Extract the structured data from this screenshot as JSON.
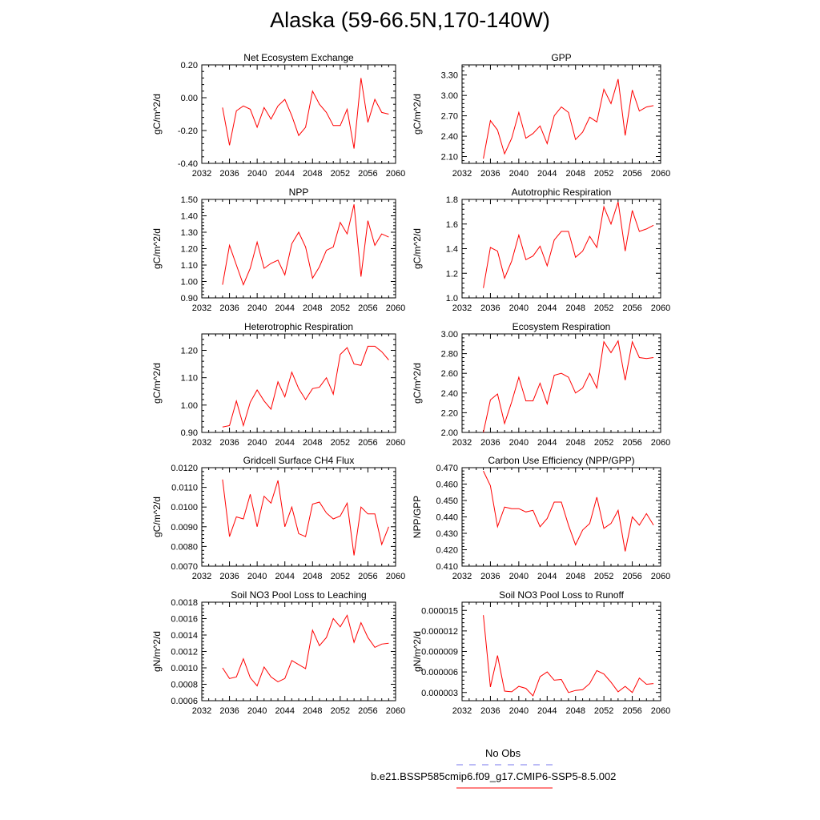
{
  "title": "Alaska (59-66.5N,170-140W)",
  "legend": {
    "obs_label": "No Obs",
    "obs_color": "#7777ee",
    "model_label": "b.e21.BSSP585cmip6.f09_g17.CMIP6-SSP5-8.5.002",
    "model_color": "#ff0000"
  },
  "chart_data": [
    {
      "type": "line",
      "title": "Net Ecosystem Exchange",
      "ylabel": "gC/m^2/d",
      "xlim": [
        2032,
        2060
      ],
      "ylim": [
        -0.4,
        0.2
      ],
      "xticks": [
        2032,
        2036,
        2040,
        2044,
        2048,
        2052,
        2056,
        2060
      ],
      "xtick_labels": [
        "2032",
        "2036",
        "2040",
        "2044",
        "2048",
        "2052",
        "2056",
        "2060"
      ],
      "yticks": [
        -0.4,
        -0.2,
        0.0,
        0.2
      ],
      "ytick_labels": [
        "-0.40",
        "-0.20",
        "0.00",
        "0.20"
      ],
      "x": [
        2035,
        2036,
        2037,
        2038,
        2039,
        2040,
        2041,
        2042,
        2043,
        2044,
        2045,
        2046,
        2047,
        2048,
        2049,
        2050,
        2051,
        2052,
        2053,
        2054,
        2055,
        2056,
        2057,
        2058,
        2059
      ],
      "series": [
        {
          "values": [
            -0.06,
            -0.29,
            -0.08,
            -0.05,
            -0.07,
            -0.18,
            -0.06,
            -0.13,
            -0.05,
            -0.01,
            -0.11,
            -0.23,
            -0.18,
            0.04,
            -0.04,
            -0.09,
            -0.17,
            -0.17,
            -0.07,
            -0.31,
            0.12,
            -0.15,
            -0.01,
            -0.09,
            -0.1
          ]
        }
      ]
    },
    {
      "type": "line",
      "title": "GPP",
      "ylabel": "gC/m^2/d",
      "xlim": [
        2032,
        2060
      ],
      "ylim": [
        2.0,
        3.45
      ],
      "xticks": [
        2032,
        2036,
        2040,
        2044,
        2048,
        2052,
        2056,
        2060
      ],
      "xtick_labels": [
        "2032",
        "2036",
        "2040",
        "2044",
        "2048",
        "2052",
        "2056",
        "2060"
      ],
      "yticks": [
        2.1,
        2.4,
        2.7,
        3.0,
        3.3
      ],
      "ytick_labels": [
        "2.10",
        "2.40",
        "2.70",
        "3.00",
        "3.30"
      ],
      "x": [
        2035,
        2036,
        2037,
        2038,
        2039,
        2040,
        2041,
        2042,
        2043,
        2044,
        2045,
        2046,
        2047,
        2048,
        2049,
        2050,
        2051,
        2052,
        2053,
        2054,
        2055,
        2056,
        2057,
        2058,
        2059
      ],
      "series": [
        {
          "values": [
            2.07,
            2.63,
            2.49,
            2.14,
            2.37,
            2.75,
            2.37,
            2.44,
            2.55,
            2.29,
            2.7,
            2.83,
            2.75,
            2.35,
            2.46,
            2.68,
            2.61,
            3.09,
            2.88,
            3.24,
            2.41,
            3.08,
            2.77,
            2.83,
            2.85
          ]
        }
      ]
    },
    {
      "type": "line",
      "title": "NPP",
      "ylabel": "gC/m^2/d",
      "xlim": [
        2032,
        2060
      ],
      "ylim": [
        0.9,
        1.5
      ],
      "xticks": [
        2032,
        2036,
        2040,
        2044,
        2048,
        2052,
        2056,
        2060
      ],
      "xtick_labels": [
        "2032",
        "2036",
        "2040",
        "2044",
        "2048",
        "2052",
        "2056",
        "2060"
      ],
      "yticks": [
        0.9,
        1.0,
        1.1,
        1.2,
        1.3,
        1.4,
        1.5
      ],
      "ytick_labels": [
        "0.90",
        "1.00",
        "1.10",
        "1.20",
        "1.30",
        "1.40",
        "1.50"
      ],
      "x": [
        2035,
        2036,
        2037,
        2038,
        2039,
        2040,
        2041,
        2042,
        2043,
        2044,
        2045,
        2046,
        2047,
        2048,
        2049,
        2050,
        2051,
        2052,
        2053,
        2054,
        2055,
        2056,
        2057,
        2058,
        2059
      ],
      "series": [
        {
          "values": [
            0.98,
            1.22,
            1.1,
            0.98,
            1.08,
            1.24,
            1.08,
            1.11,
            1.13,
            1.04,
            1.23,
            1.3,
            1.21,
            1.02,
            1.09,
            1.19,
            1.21,
            1.36,
            1.29,
            1.47,
            1.03,
            1.37,
            1.22,
            1.29,
            1.27
          ]
        }
      ]
    },
    {
      "type": "line",
      "title": "Autotrophic Respiration",
      "ylabel": "gC/m^2/d",
      "xlim": [
        2032,
        2060
      ],
      "ylim": [
        1.0,
        1.8
      ],
      "xticks": [
        2032,
        2036,
        2040,
        2044,
        2048,
        2052,
        2056,
        2060
      ],
      "xtick_labels": [
        "2032",
        "2036",
        "2040",
        "2044",
        "2048",
        "2052",
        "2056",
        "2060"
      ],
      "yticks": [
        1.0,
        1.2,
        1.4,
        1.6,
        1.8
      ],
      "ytick_labels": [
        "1.0",
        "1.2",
        "1.4",
        "1.6",
        "1.8"
      ],
      "x": [
        2035,
        2036,
        2037,
        2038,
        2039,
        2040,
        2041,
        2042,
        2043,
        2044,
        2045,
        2046,
        2047,
        2048,
        2049,
        2050,
        2051,
        2052,
        2053,
        2054,
        2055,
        2056,
        2057,
        2058,
        2059
      ],
      "series": [
        {
          "values": [
            1.08,
            1.41,
            1.38,
            1.16,
            1.3,
            1.51,
            1.31,
            1.34,
            1.42,
            1.26,
            1.47,
            1.54,
            1.54,
            1.33,
            1.38,
            1.5,
            1.41,
            1.74,
            1.6,
            1.78,
            1.38,
            1.71,
            1.54,
            1.56,
            1.59
          ]
        }
      ]
    },
    {
      "type": "line",
      "title": "Heterotrophic Respiration",
      "ylabel": "gC/m^2/d",
      "xlim": [
        2032,
        2060
      ],
      "ylim": [
        0.9,
        1.26
      ],
      "xticks": [
        2032,
        2036,
        2040,
        2044,
        2048,
        2052,
        2056,
        2060
      ],
      "xtick_labels": [
        "2032",
        "2036",
        "2040",
        "2044",
        "2048",
        "2052",
        "2056",
        "2060"
      ],
      "yticks": [
        0.9,
        1.0,
        1.1,
        1.2
      ],
      "ytick_labels": [
        "0.90",
        "1.00",
        "1.10",
        "1.20"
      ],
      "x": [
        2035,
        2036,
        2037,
        2038,
        2039,
        2040,
        2041,
        2042,
        2043,
        2044,
        2045,
        2046,
        2047,
        2048,
        2049,
        2050,
        2051,
        2052,
        2053,
        2054,
        2055,
        2056,
        2057,
        2058,
        2059
      ],
      "series": [
        {
          "values": [
            0.92,
            0.925,
            1.015,
            0.925,
            1.01,
            1.055,
            1.015,
            0.985,
            1.085,
            1.03,
            1.12,
            1.06,
            1.02,
            1.06,
            1.065,
            1.1,
            1.04,
            1.185,
            1.21,
            1.15,
            1.145,
            1.215,
            1.215,
            1.195,
            1.165
          ]
        }
      ]
    },
    {
      "type": "line",
      "title": "Ecosystem Respiration",
      "ylabel": "gC/m^2/d",
      "xlim": [
        2032,
        2060
      ],
      "ylim": [
        2.0,
        3.0
      ],
      "xticks": [
        2032,
        2036,
        2040,
        2044,
        2048,
        2052,
        2056,
        2060
      ],
      "xtick_labels": [
        "2032",
        "2036",
        "2040",
        "2044",
        "2048",
        "2052",
        "2056",
        "2060"
      ],
      "yticks": [
        2.0,
        2.2,
        2.4,
        2.6,
        2.8,
        3.0
      ],
      "ytick_labels": [
        "2.00",
        "2.20",
        "2.40",
        "2.60",
        "2.80",
        "3.00"
      ],
      "x": [
        2035,
        2036,
        2037,
        2038,
        2039,
        2040,
        2041,
        2042,
        2043,
        2044,
        2045,
        2046,
        2047,
        2048,
        2049,
        2050,
        2051,
        2052,
        2053,
        2054,
        2055,
        2056,
        2057,
        2058,
        2059
      ],
      "series": [
        {
          "values": [
            2.0,
            2.33,
            2.39,
            2.09,
            2.31,
            2.56,
            2.32,
            2.32,
            2.5,
            2.29,
            2.58,
            2.6,
            2.56,
            2.4,
            2.45,
            2.6,
            2.45,
            2.92,
            2.81,
            2.93,
            2.53,
            2.92,
            2.76,
            2.75,
            2.76
          ]
        }
      ]
    },
    {
      "type": "line",
      "title": "Gridcell Surface CH4 Flux",
      "ylabel": "gC/m^2/d",
      "xlim": [
        2032,
        2060
      ],
      "ylim": [
        0.007,
        0.012
      ],
      "xticks": [
        2032,
        2036,
        2040,
        2044,
        2048,
        2052,
        2056,
        2060
      ],
      "xtick_labels": [
        "2032",
        "2036",
        "2040",
        "2044",
        "2048",
        "2052",
        "2056",
        "2060"
      ],
      "yticks": [
        0.007,
        0.008,
        0.009,
        0.01,
        0.011,
        0.012
      ],
      "ytick_labels": [
        "0.0070",
        "0.0080",
        "0.0090",
        "0.0100",
        "0.0110",
        "0.0120"
      ],
      "x": [
        2035,
        2036,
        2037,
        2038,
        2039,
        2040,
        2041,
        2042,
        2043,
        2044,
        2045,
        2046,
        2047,
        2048,
        2049,
        2050,
        2051,
        2052,
        2053,
        2054,
        2055,
        2056,
        2057,
        2058,
        2059
      ],
      "series": [
        {
          "values": [
            0.0114,
            0.0085,
            0.0095,
            0.0094,
            0.01065,
            0.009,
            0.01055,
            0.0102,
            0.01135,
            0.009,
            0.01,
            0.00865,
            0.0085,
            0.01015,
            0.01025,
            0.0097,
            0.0094,
            0.00955,
            0.0102,
            0.00755,
            0.01,
            0.00965,
            0.00965,
            0.0081,
            0.009
          ]
        }
      ]
    },
    {
      "type": "line",
      "title": "Carbon Use Efficiency (NPP/GPP)",
      "ylabel": "NPP/GPP",
      "xlim": [
        2032,
        2060
      ],
      "ylim": [
        0.41,
        0.47
      ],
      "xticks": [
        2032,
        2036,
        2040,
        2044,
        2048,
        2052,
        2056,
        2060
      ],
      "xtick_labels": [
        "2032",
        "2036",
        "2040",
        "2044",
        "2048",
        "2052",
        "2056",
        "2060"
      ],
      "yticks": [
        0.41,
        0.42,
        0.43,
        0.44,
        0.45,
        0.46,
        0.47
      ],
      "ytick_labels": [
        "0.410",
        "0.420",
        "0.430",
        "0.440",
        "0.450",
        "0.460",
        "0.470"
      ],
      "x": [
        2035,
        2036,
        2037,
        2038,
        2039,
        2040,
        2041,
        2042,
        2043,
        2044,
        2045,
        2046,
        2047,
        2048,
        2049,
        2050,
        2051,
        2052,
        2053,
        2054,
        2055,
        2056,
        2057,
        2058,
        2059
      ],
      "series": [
        {
          "values": [
            0.468,
            0.459,
            0.434,
            0.446,
            0.445,
            0.445,
            0.443,
            0.444,
            0.434,
            0.439,
            0.449,
            0.449,
            0.435,
            0.423,
            0.432,
            0.436,
            0.452,
            0.433,
            0.436,
            0.444,
            0.419,
            0.44,
            0.435,
            0.442,
            0.435
          ]
        }
      ]
    },
    {
      "type": "line",
      "title": "Soil NO3 Pool Loss to Leaching",
      "ylabel": "gN/m^2/d",
      "xlim": [
        2032,
        2060
      ],
      "ylim": [
        0.0006,
        0.0018
      ],
      "xticks": [
        2032,
        2036,
        2040,
        2044,
        2048,
        2052,
        2056,
        2060
      ],
      "xtick_labels": [
        "2032",
        "2036",
        "2040",
        "2044",
        "2048",
        "2052",
        "2056",
        "2060"
      ],
      "yticks": [
        0.0006,
        0.0008,
        0.001,
        0.0012,
        0.0014,
        0.0016,
        0.0018
      ],
      "ytick_labels": [
        "0.0006",
        "0.0008",
        "0.0010",
        "0.0012",
        "0.0014",
        "0.0016",
        "0.0018"
      ],
      "x": [
        2035,
        2036,
        2037,
        2038,
        2039,
        2040,
        2041,
        2042,
        2043,
        2044,
        2045,
        2046,
        2047,
        2048,
        2049,
        2050,
        2051,
        2052,
        2053,
        2054,
        2055,
        2056,
        2057,
        2058,
        2059
      ],
      "series": [
        {
          "values": [
            0.001,
            0.00087,
            0.00089,
            0.00111,
            0.00088,
            0.00078,
            0.00101,
            0.00089,
            0.00083,
            0.00087,
            0.00109,
            0.00104,
            0.00099,
            0.00146,
            0.00127,
            0.00137,
            0.0016,
            0.0015,
            0.00164,
            0.00131,
            0.00155,
            0.00137,
            0.00125,
            0.00129,
            0.0013
          ]
        }
      ]
    },
    {
      "type": "line",
      "title": "Soil NO3 Pool Loss to Runoff",
      "ylabel": "gN/m^2/d",
      "xlim": [
        2032,
        2060
      ],
      "ylim": [
        1.8e-06,
        1.62e-05
      ],
      "xticks": [
        2032,
        2036,
        2040,
        2044,
        2048,
        2052,
        2056,
        2060
      ],
      "xtick_labels": [
        "2032",
        "2036",
        "2040",
        "2044",
        "2048",
        "2052",
        "2056",
        "2060"
      ],
      "yticks": [
        3e-06,
        6e-06,
        9e-06,
        1.2e-05,
        1.5e-05
      ],
      "ytick_labels": [
        "0.000003",
        "0.000006",
        "0.000009",
        "0.000012",
        "0.000015"
      ],
      "x": [
        2035,
        2036,
        2037,
        2038,
        2039,
        2040,
        2041,
        2042,
        2043,
        2044,
        2045,
        2046,
        2047,
        2048,
        2049,
        2050,
        2051,
        2052,
        2053,
        2054,
        2055,
        2056,
        2057,
        2058,
        2059
      ],
      "series": [
        {
          "values": [
            1.43e-05,
            3.8e-06,
            8.4e-06,
            3.2e-06,
            3.1e-06,
            3.9e-06,
            3.6e-06,
            2.5e-06,
            5.3e-06,
            6e-06,
            4.8e-06,
            4.9e-06,
            3e-06,
            3.3e-06,
            3.4e-06,
            4.3e-06,
            6.2e-06,
            5.7e-06,
            4.5e-06,
            3.1e-06,
            3.9e-06,
            3e-06,
            5.1e-06,
            4.2e-06,
            4.3e-06
          ]
        }
      ]
    }
  ]
}
